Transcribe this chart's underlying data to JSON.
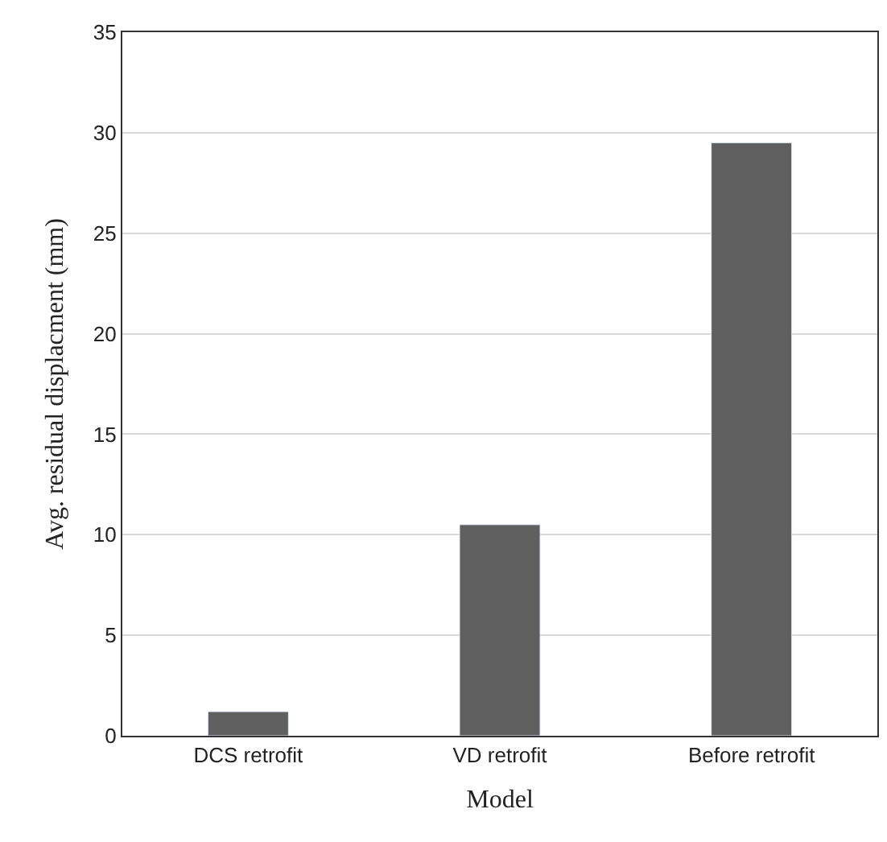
{
  "chart_data": {
    "type": "bar",
    "xlabel": "Model",
    "ylabel": "Avg. residual displacment (mm)",
    "categories": [
      "DCS retrofit",
      "VD retrofit",
      "Before retrofit"
    ],
    "values": [
      1.2,
      10.5,
      29.5
    ],
    "color": "#5f5f5f",
    "ylim": [
      0,
      35
    ],
    "yticks": [
      0,
      5,
      10,
      15,
      20,
      25,
      30,
      35
    ],
    "grid": "y"
  }
}
